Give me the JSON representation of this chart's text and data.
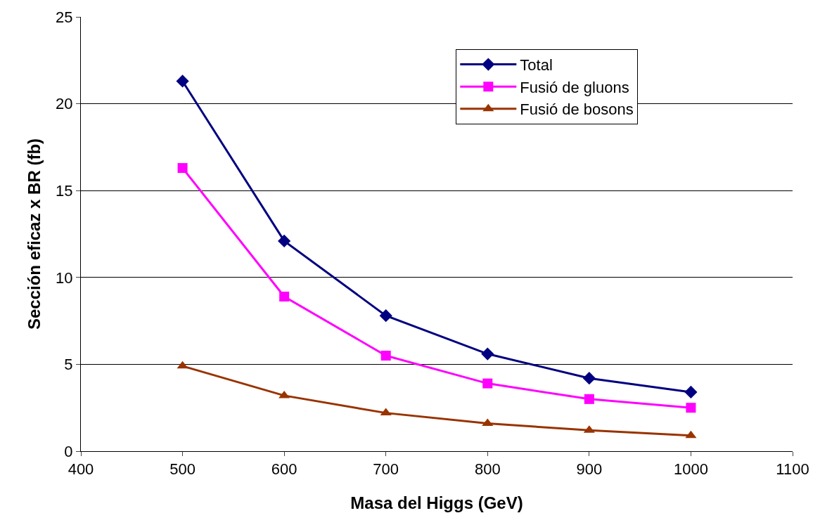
{
  "chart_data": {
    "type": "line",
    "xlabel": "Masa del Higgs (GeV)",
    "ylabel": "Sección eficaz x BR (fb)",
    "x": [
      500,
      600,
      700,
      800,
      900,
      1000
    ],
    "series": [
      {
        "name": "Total",
        "color": "#000080",
        "marker": "diamond",
        "values": [
          21.3,
          12.1,
          7.8,
          5.6,
          4.2,
          3.4
        ]
      },
      {
        "name": "Fusió de gluons",
        "color": "#ff00ff",
        "marker": "square",
        "values": [
          16.3,
          8.9,
          5.5,
          3.9,
          3.0,
          2.5
        ]
      },
      {
        "name": "Fusió de bosons",
        "color": "#993300",
        "marker": "triangle",
        "values": [
          4.9,
          3.2,
          2.2,
          1.6,
          1.2,
          0.9
        ]
      }
    ],
    "xlim": [
      400,
      1100
    ],
    "xticks": [
      400,
      500,
      600,
      700,
      800,
      900,
      1000,
      1100
    ],
    "ylim": [
      0,
      25
    ],
    "yticks": [
      0,
      5,
      10,
      15,
      20,
      25
    ],
    "grid": "y",
    "legend": "top right",
    "line_style": "solid"
  }
}
